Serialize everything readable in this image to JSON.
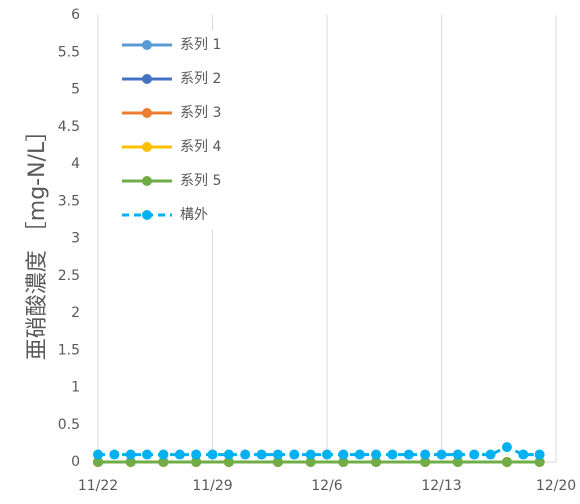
{
  "chart_data": {
    "type": "line",
    "ylabel": "亜硝酸濃度 ［mg-N/L］",
    "xlabel": "",
    "ylim": [
      0,
      6
    ],
    "yticks": [
      "0",
      "0.5",
      "1",
      "1.5",
      "2",
      "2.5",
      "3",
      "3.5",
      "4",
      "4.5",
      "5",
      "5.5",
      "6"
    ],
    "xlim": [
      "2021-11-22",
      "2021-12-20"
    ],
    "xticks": [
      "11/22",
      "11/29",
      "12/6",
      "12/13",
      "12/20"
    ],
    "grid": "vertical",
    "legend_position": "top-left",
    "series": [
      {
        "name": "系列 1",
        "color": "#5B9BD5",
        "style": "solid",
        "x": [
          "2021-11-22",
          "2021-11-24",
          "2021-11-26",
          "2021-11-28",
          "2021-11-30",
          "2021-12-03",
          "2021-12-05",
          "2021-12-07",
          "2021-12-09",
          "2021-12-12",
          "2021-12-14",
          "2021-12-17",
          "2021-12-19"
        ],
        "values": [
          0,
          0,
          0,
          0,
          0,
          0,
          0,
          0,
          0,
          0,
          0,
          0,
          0
        ]
      },
      {
        "name": "系列 2",
        "color": "#4472C4",
        "style": "solid",
        "x": [
          "2021-11-22",
          "2021-11-24",
          "2021-11-26",
          "2021-11-28",
          "2021-11-30",
          "2021-12-03",
          "2021-12-05",
          "2021-12-07",
          "2021-12-09",
          "2021-12-12",
          "2021-12-14",
          "2021-12-17",
          "2021-12-19"
        ],
        "values": [
          0,
          0,
          0,
          0,
          0,
          0,
          0,
          0,
          0,
          0,
          0,
          0,
          0
        ]
      },
      {
        "name": "系列 3",
        "color": "#ED7D31",
        "style": "solid",
        "x": [
          "2021-11-22",
          "2021-11-24",
          "2021-11-26",
          "2021-11-28",
          "2021-11-30",
          "2021-12-03",
          "2021-12-05",
          "2021-12-07",
          "2021-12-09",
          "2021-12-12",
          "2021-12-14",
          "2021-12-17",
          "2021-12-19"
        ],
        "values": [
          0,
          0,
          0,
          0,
          0,
          0,
          0,
          0,
          0,
          0,
          0,
          0,
          0
        ]
      },
      {
        "name": "系列 4",
        "color": "#FFC000",
        "style": "solid",
        "x": [
          "2021-11-22",
          "2021-11-24",
          "2021-11-26",
          "2021-11-28",
          "2021-11-30",
          "2021-12-03",
          "2021-12-05",
          "2021-12-07",
          "2021-12-09",
          "2021-12-12",
          "2021-12-14",
          "2021-12-17",
          "2021-12-19"
        ],
        "values": [
          0,
          0,
          0,
          0,
          0,
          0,
          0,
          0,
          0,
          0,
          0,
          0,
          0
        ]
      },
      {
        "name": "系列 5",
        "color": "#70AD47",
        "style": "solid",
        "x": [
          "2021-11-22",
          "2021-11-24",
          "2021-11-26",
          "2021-11-28",
          "2021-11-30",
          "2021-12-03",
          "2021-12-05",
          "2021-12-07",
          "2021-12-09",
          "2021-12-12",
          "2021-12-14",
          "2021-12-17",
          "2021-12-19"
        ],
        "values": [
          0,
          0,
          0,
          0,
          0,
          0,
          0,
          0,
          0,
          0,
          0,
          0,
          0
        ]
      },
      {
        "name": "構外",
        "color": "#00B0F0",
        "style": "dashed",
        "x": [
          "2021-11-22",
          "2021-11-23",
          "2021-11-24",
          "2021-11-25",
          "2021-11-26",
          "2021-11-27",
          "2021-11-28",
          "2021-11-29",
          "2021-11-30",
          "2021-12-01",
          "2021-12-02",
          "2021-12-03",
          "2021-12-04",
          "2021-12-05",
          "2021-12-06",
          "2021-12-07",
          "2021-12-08",
          "2021-12-09",
          "2021-12-10",
          "2021-12-11",
          "2021-12-12",
          "2021-12-13",
          "2021-12-14",
          "2021-12-15",
          "2021-12-16",
          "2021-12-17",
          "2021-12-18",
          "2021-12-19"
        ],
        "values": [
          0.1,
          0.1,
          0.1,
          0.1,
          0.1,
          0.1,
          0.1,
          0.1,
          0.1,
          0.1,
          0.1,
          0.1,
          0.1,
          0.1,
          0.1,
          0.1,
          0.1,
          0.1,
          0.1,
          0.1,
          0.1,
          0.1,
          0.1,
          0.1,
          0.1,
          0.2,
          0.1,
          0.1
        ]
      }
    ]
  }
}
